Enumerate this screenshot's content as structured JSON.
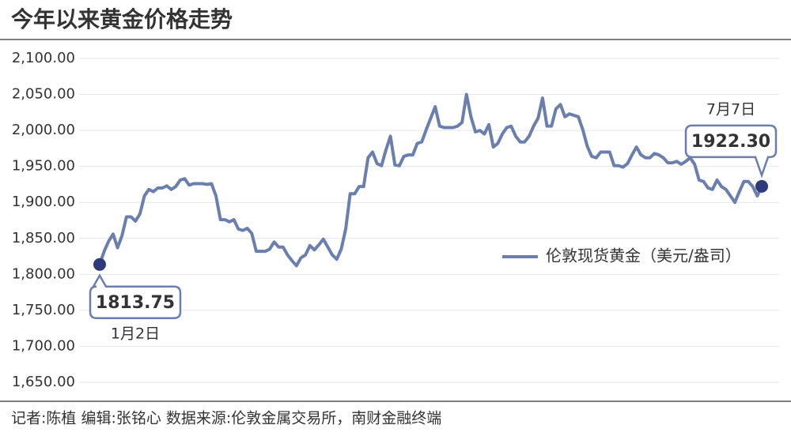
{
  "chart_data": {
    "type": "line",
    "title": "今年以来黄金价格走势",
    "footer": "记者:陈植   编辑:张铭心   数据来源:伦敦金属交易所，南财金融终端",
    "categories": [
      "1月2日",
      null,
      null,
      null,
      null,
      null,
      null,
      null,
      null,
      null,
      null,
      null,
      null,
      null,
      null,
      null,
      null,
      null,
      null,
      null,
      null,
      null,
      null,
      null,
      null,
      null,
      null,
      null,
      null,
      null,
      null,
      null,
      null,
      null,
      null,
      null,
      null,
      null,
      null,
      null,
      null,
      null,
      null,
      null,
      null,
      null,
      null,
      null,
      null,
      null,
      null,
      null,
      null,
      null,
      null,
      null,
      null,
      null,
      null,
      null,
      null,
      null,
      null,
      null,
      null,
      null,
      null,
      null,
      null,
      null,
      null,
      null,
      null,
      null,
      null,
      null,
      null,
      null,
      null,
      null,
      null,
      null,
      null,
      null,
      null,
      null,
      null,
      null,
      null,
      null,
      null,
      null,
      null,
      null,
      null,
      null,
      null,
      null,
      null,
      null,
      null,
      null,
      null,
      null,
      null,
      null,
      null,
      null,
      null,
      null,
      null,
      null,
      null,
      null,
      null,
      null,
      null,
      null,
      null,
      null,
      null,
      null,
      null,
      null,
      null,
      null,
      null,
      null,
      null,
      null,
      null,
      null,
      null,
      null,
      null,
      null,
      null,
      null,
      null,
      null,
      null,
      null,
      null,
      null,
      null,
      null,
      null,
      null,
      "7月7日"
    ],
    "series": [
      {
        "name": "伦敦现货黄金（美元/盎司）",
        "color": "#6a7fad",
        "marker_color": "#2e3a7c",
        "values": [
          1813.75,
          1832,
          1846,
          1856,
          1837,
          1854,
          1880,
          1880,
          1874,
          1884,
          1909,
          1918,
          1915,
          1920,
          1920,
          1923,
          1918,
          1922,
          1931,
          1933,
          1924,
          1926,
          1926,
          1926,
          1925,
          1926,
          1909,
          1876,
          1876,
          1873,
          1876,
          1863,
          1861,
          1864,
          1857,
          1832,
          1832,
          1832,
          1835,
          1845,
          1838,
          1838,
          1827,
          1819,
          1812,
          1823,
          1827,
          1840,
          1834,
          1841,
          1849,
          1838,
          1827,
          1821,
          1835,
          1863,
          1912,
          1912,
          1922,
          1922,
          1962,
          1970,
          1954,
          1951,
          1973,
          1992,
          1952,
          1951,
          1964,
          1966,
          1966,
          1982,
          1984,
          2001,
          2017,
          2033,
          2006,
          2004,
          2004,
          2004,
          2006,
          2011,
          2050,
          2019,
          1998,
          2000,
          1995,
          2008,
          1977,
          1982,
          1995,
          2004,
          2006,
          1992,
          1984,
          1984,
          1992,
          2006,
          2017,
          2045,
          2006,
          2006,
          2030,
          2036,
          2019,
          2023,
          2021,
          2019,
          2001,
          1978,
          1964,
          1962,
          1970,
          1970,
          1970,
          1951,
          1951,
          1949,
          1954,
          1966,
          1977,
          1966,
          1962,
          1962,
          1968,
          1966,
          1962,
          1955,
          1955,
          1957,
          1953,
          1957,
          1962,
          1953,
          1931,
          1929,
          1920,
          1918,
          1931,
          1922,
          1918,
          1909,
          1900,
          1915,
          1929,
          1929,
          1922,
          1909,
          1922.3
        ],
        "value_labels": [
          "1813.75",
          null,
          null,
          null,
          null,
          null,
          null,
          null,
          null,
          null,
          null,
          null,
          null,
          null,
          null,
          null,
          null,
          null,
          null,
          null,
          null,
          null,
          null,
          null,
          null,
          null,
          null,
          null,
          null,
          null,
          null,
          null,
          null,
          null,
          null,
          null,
          null,
          null,
          null,
          null,
          null,
          null,
          null,
          null,
          null,
          null,
          null,
          null,
          null,
          null,
          null,
          null,
          null,
          null,
          null,
          null,
          null,
          null,
          null,
          null,
          null,
          null,
          null,
          null,
          null,
          null,
          null,
          null,
          null,
          null,
          null,
          null,
          null,
          null,
          null,
          null,
          null,
          null,
          null,
          null,
          null,
          null,
          null,
          null,
          null,
          null,
          null,
          null,
          null,
          null,
          null,
          null,
          null,
          null,
          null,
          null,
          null,
          null,
          null,
          null,
          null,
          null,
          null,
          null,
          null,
          null,
          null,
          null,
          null,
          null,
          null,
          null,
          null,
          null,
          null,
          null,
          null,
          null,
          null,
          null,
          null,
          null,
          null,
          null,
          null,
          null,
          null,
          null,
          null,
          null,
          null,
          null,
          null,
          null,
          null,
          null,
          null,
          null,
          null,
          null,
          null,
          null,
          null,
          null,
          null,
          null,
          null,
          null,
          "1922.30"
        ]
      }
    ],
    "ylim": [
      1650,
      2100
    ],
    "yticks": [
      {
        "value": 1650,
        "label": "1,650.00"
      },
      {
        "value": 1700,
        "label": "1,700.00"
      },
      {
        "value": 1750,
        "label": "1,750.00"
      },
      {
        "value": 1800,
        "label": "1,800.00"
      },
      {
        "value": 1850,
        "label": "1,850.00"
      },
      {
        "value": 1900,
        "label": "1,900.00"
      },
      {
        "value": 1950,
        "label": "1,950.00"
      },
      {
        "value": 2000,
        "label": "2,000.00"
      },
      {
        "value": 2050,
        "label": "2,050.00"
      },
      {
        "value": 2100,
        "label": "2,100.00"
      }
    ],
    "grid": true,
    "legend": "right"
  }
}
